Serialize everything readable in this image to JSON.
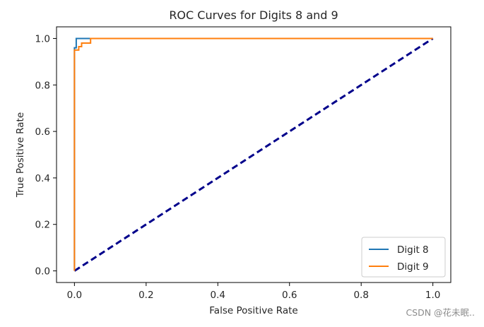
{
  "chart_data": {
    "type": "line",
    "title": "ROC Curves for Digits 8 and 9",
    "xlabel": "False Positive Rate",
    "ylabel": "True Positive Rate",
    "xlim": [
      -0.05,
      1.05
    ],
    "ylim": [
      -0.05,
      1.05
    ],
    "xticks": [
      0.0,
      0.2,
      0.4,
      0.6,
      0.8,
      1.0
    ],
    "xtick_labels": [
      "0.0",
      "0.2",
      "0.4",
      "0.6",
      "0.8",
      "1.0"
    ],
    "yticks": [
      0.0,
      0.2,
      0.4,
      0.6,
      0.8,
      1.0
    ],
    "ytick_labels": [
      "0.0",
      "0.2",
      "0.4",
      "0.6",
      "0.8",
      "1.0"
    ],
    "legend_position": "bottom-right",
    "series": [
      {
        "name": "Digit 8",
        "color": "#1f77b4",
        "x": [
          0.0,
          0.0,
          0.005,
          0.005,
          0.05,
          1.0
        ],
        "y": [
          0.0,
          0.96,
          0.96,
          1.0,
          1.0,
          1.0
        ]
      },
      {
        "name": "Digit 9",
        "color": "#ff7f0e",
        "x": [
          0.0,
          0.0,
          0.012,
          0.012,
          0.02,
          0.02,
          0.045,
          0.045,
          1.0
        ],
        "y": [
          0.0,
          0.95,
          0.95,
          0.965,
          0.965,
          0.98,
          0.98,
          1.0,
          1.0
        ]
      }
    ],
    "reference_line": {
      "x": [
        0.0,
        1.0
      ],
      "y": [
        0.0,
        1.0
      ],
      "color": "#00008b",
      "style": "dashed"
    }
  },
  "watermark": "CSDN @花未眠.."
}
